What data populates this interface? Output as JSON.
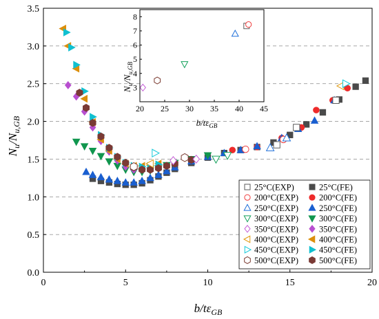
{
  "chart_data": [
    {
      "type": "scatter",
      "title": "",
      "xlim": [
        0,
        20
      ],
      "ylim": [
        0,
        3.5
      ],
      "x_ticks": [
        "0",
        "5",
        "10",
        "15",
        "20"
      ],
      "y_ticks": [
        "0.0",
        "0.5",
        "1.0",
        "1.5",
        "2.0",
        "2.5",
        "3.0",
        "3.5"
      ],
      "grid": "horizontal dashed",
      "legend_position": "bottom-right",
      "series": [
        {
          "name": "25°C(EXP)",
          "marker": "square",
          "filled": false,
          "color": "#5a5a5a",
          "x": [
            14.2,
            15.4,
            17.8
          ],
          "y": [
            1.69,
            1.92,
            2.28
          ]
        },
        {
          "name": "200°C(EXP)",
          "marker": "circle",
          "filled": false,
          "color": "#ef3b3b",
          "x": [
            12.3,
            14.6
          ],
          "y": [
            1.63,
            1.76
          ]
        },
        {
          "name": "250°C(EXP)",
          "marker": "triangle-up",
          "filled": false,
          "color": "#1e6fd9",
          "x": [
            13.8,
            14.8
          ],
          "y": [
            1.65,
            1.78
          ]
        },
        {
          "name": "300°C(EXP)",
          "marker": "triangle-down",
          "filled": false,
          "color": "#12a05a",
          "x": [
            10.5,
            11.2
          ],
          "y": [
            1.5,
            1.55
          ]
        },
        {
          "name": "350°C(EXP)",
          "marker": "diamond",
          "filled": false,
          "color": "#c45ed6",
          "x": [
            7.9,
            9.3
          ],
          "y": [
            1.48,
            1.5
          ]
        },
        {
          "name": "400°C(EXP)",
          "marker": "triangle-left",
          "filled": false,
          "color": "#e09a10",
          "x": [
            6.5,
            18.1
          ],
          "y": [
            1.44,
            2.47
          ]
        },
        {
          "name": "450°C(EXP)",
          "marker": "triangle-right",
          "filled": false,
          "color": "#12c8d8",
          "x": [
            6.8,
            18.4
          ],
          "y": [
            1.58,
            2.5
          ]
        },
        {
          "name": "500°C(EXP)",
          "marker": "hexagon",
          "filled": false,
          "color": "#7a3a30",
          "x": [
            5.5,
            8.6
          ],
          "y": [
            1.4,
            1.52
          ]
        },
        {
          "name": "25°C(FE)",
          "marker": "square",
          "filled": true,
          "color": "#4a4a4a",
          "x": [
            3.0,
            3.5,
            4.0,
            4.5,
            5.0,
            5.5,
            6.0,
            6.5,
            7.0,
            7.5,
            8.0,
            9.0,
            10.0,
            11.0,
            12.0,
            13.0,
            14.0,
            15.0,
            16.0,
            17.0,
            18.0,
            19.0,
            19.6
          ],
          "y": [
            1.24,
            1.21,
            1.19,
            1.17,
            1.16,
            1.16,
            1.18,
            1.22,
            1.27,
            1.32,
            1.37,
            1.45,
            1.52,
            1.58,
            1.62,
            1.66,
            1.72,
            1.82,
            1.96,
            2.12,
            2.29,
            2.46,
            2.54
          ]
        },
        {
          "name": "200°C(FE)",
          "marker": "circle",
          "filled": true,
          "color": "#ee2b2b",
          "x": [
            11.5,
            13.0,
            14.5,
            15.7,
            16.6,
            17.6,
            18.5
          ],
          "y": [
            1.62,
            1.66,
            1.78,
            1.92,
            2.15,
            2.28,
            2.44
          ]
        },
        {
          "name": "250°C(FE)",
          "marker": "triangle-up",
          "filled": true,
          "color": "#1a5fd0",
          "x": [
            2.6,
            3.0,
            3.5,
            4.0,
            4.5,
            5.0,
            5.5,
            6.0,
            6.5,
            7.0,
            7.5,
            8.0,
            9.0,
            10.0,
            11.0,
            12.0,
            13.0,
            14.5,
            15.5,
            16.5,
            17.7
          ],
          "y": [
            1.33,
            1.29,
            1.26,
            1.23,
            1.21,
            1.19,
            1.19,
            1.21,
            1.25,
            1.29,
            1.34,
            1.39,
            1.47,
            1.53,
            1.58,
            1.62,
            1.67,
            1.78,
            1.9,
            2.01,
            2.28
          ]
        },
        {
          "name": "300°C(FE)",
          "marker": "triangle-down",
          "filled": true,
          "color": "#10964e",
          "x": [
            2.0,
            2.5,
            3.0,
            3.5,
            4.0,
            4.5,
            5.0,
            5.5,
            6.0,
            6.5,
            7.0,
            7.5,
            8.0,
            9.0,
            10.0
          ],
          "y": [
            1.73,
            1.67,
            1.61,
            1.54,
            1.47,
            1.41,
            1.36,
            1.33,
            1.33,
            1.35,
            1.38,
            1.42,
            1.45,
            1.5,
            1.55
          ]
        },
        {
          "name": "350°C(FE)",
          "marker": "diamond",
          "filled": true,
          "color": "#b84fd0",
          "x": [
            1.5,
            2.0,
            2.5,
            3.0,
            3.5,
            4.0,
            4.5,
            5.0,
            5.5,
            6.0,
            6.5,
            7.0
          ],
          "y": [
            2.48,
            2.33,
            2.13,
            1.92,
            1.74,
            1.6,
            1.48,
            1.4,
            1.36,
            1.36,
            1.38,
            1.41
          ]
        },
        {
          "name": "400°C(FE)",
          "marker": "triangle-left",
          "filled": true,
          "color": "#dc8f0c",
          "x": [
            1.2,
            1.5,
            2.0,
            2.5,
            3.0,
            3.5,
            4.0,
            4.5,
            5.0,
            5.5,
            6.0,
            6.5,
            7.0
          ],
          "y": [
            3.23,
            3.0,
            2.7,
            2.3,
            1.99,
            1.76,
            1.61,
            1.5,
            1.44,
            1.41,
            1.41,
            1.42,
            1.44
          ]
        },
        {
          "name": "450°C(FE)",
          "marker": "triangle-right",
          "filled": true,
          "color": "#10c0d0",
          "x": [
            1.4,
            1.7,
            2.0,
            2.5,
            3.0,
            3.5,
            4.0,
            4.5,
            5.0,
            5.5,
            6.0,
            6.5,
            7.0
          ],
          "y": [
            3.18,
            2.98,
            2.75,
            2.4,
            2.06,
            1.82,
            1.65,
            1.53,
            1.45,
            1.41,
            1.4,
            1.41,
            1.43
          ]
        },
        {
          "name": "500°C(FE)",
          "marker": "hexagon",
          "filled": true,
          "color": "#7a3a35",
          "x": [
            2.2,
            2.6,
            3.0,
            3.5,
            4.0,
            4.5,
            5.0,
            5.5,
            6.0,
            6.5,
            7.0,
            7.5,
            8.0,
            9.0
          ],
          "y": [
            2.38,
            2.18,
            1.98,
            1.8,
            1.65,
            1.53,
            1.45,
            1.39,
            1.36,
            1.36,
            1.38,
            1.41,
            1.44,
            1.49
          ]
        }
      ]
    },
    {
      "type": "scatter",
      "title": "",
      "xlim": [
        20,
        45
      ],
      "ylim": [
        2,
        8.5
      ],
      "x_ticks": [
        "20",
        "25",
        "30",
        "35",
        "40",
        "45"
      ],
      "y_ticks": [
        "3",
        "4",
        "5",
        "6",
        "7",
        "8"
      ],
      "series": [
        {
          "name": "350°C(EXP)",
          "marker": "diamond",
          "filled": false,
          "color": "#c45ed6",
          "x": [
            20.6
          ],
          "y": [
            3.0
          ]
        },
        {
          "name": "500°C(EXP)",
          "marker": "hexagon",
          "filled": false,
          "color": "#7a3a30",
          "x": [
            23.5
          ],
          "y": [
            3.5
          ]
        },
        {
          "name": "300°C(EXP)",
          "marker": "triangle-down",
          "filled": false,
          "color": "#12a05a",
          "x": [
            29.0
          ],
          "y": [
            4.65
          ]
        },
        {
          "name": "250°C(EXP)",
          "marker": "triangle-up",
          "filled": false,
          "color": "#1e6fd9",
          "x": [
            39.2
          ],
          "y": [
            6.8
          ]
        },
        {
          "name": "25°C(EXP)",
          "marker": "square",
          "filled": false,
          "color": "#5a5a5a",
          "x": [
            41.5
          ],
          "y": [
            7.35
          ]
        },
        {
          "name": "200°C(EXP)",
          "marker": "circle",
          "filled": false,
          "color": "#ef3b3b",
          "x": [
            41.9
          ],
          "y": [
            7.45
          ]
        }
      ]
    }
  ],
  "axes": {
    "main": {
      "ylabel": {
        "main": "N",
        "sub1": "u",
        "mid": "/N",
        "sub2": "u,GB"
      },
      "xlabel": {
        "main": "b/tε",
        "sub": "GB"
      }
    },
    "inset": {
      "ylabel": {
        "main": "N",
        "sub1": "u",
        "mid": "/N",
        "sub2": "u,GB"
      },
      "xlabel": {
        "main": "b/tε",
        "sub": "GB"
      }
    }
  }
}
